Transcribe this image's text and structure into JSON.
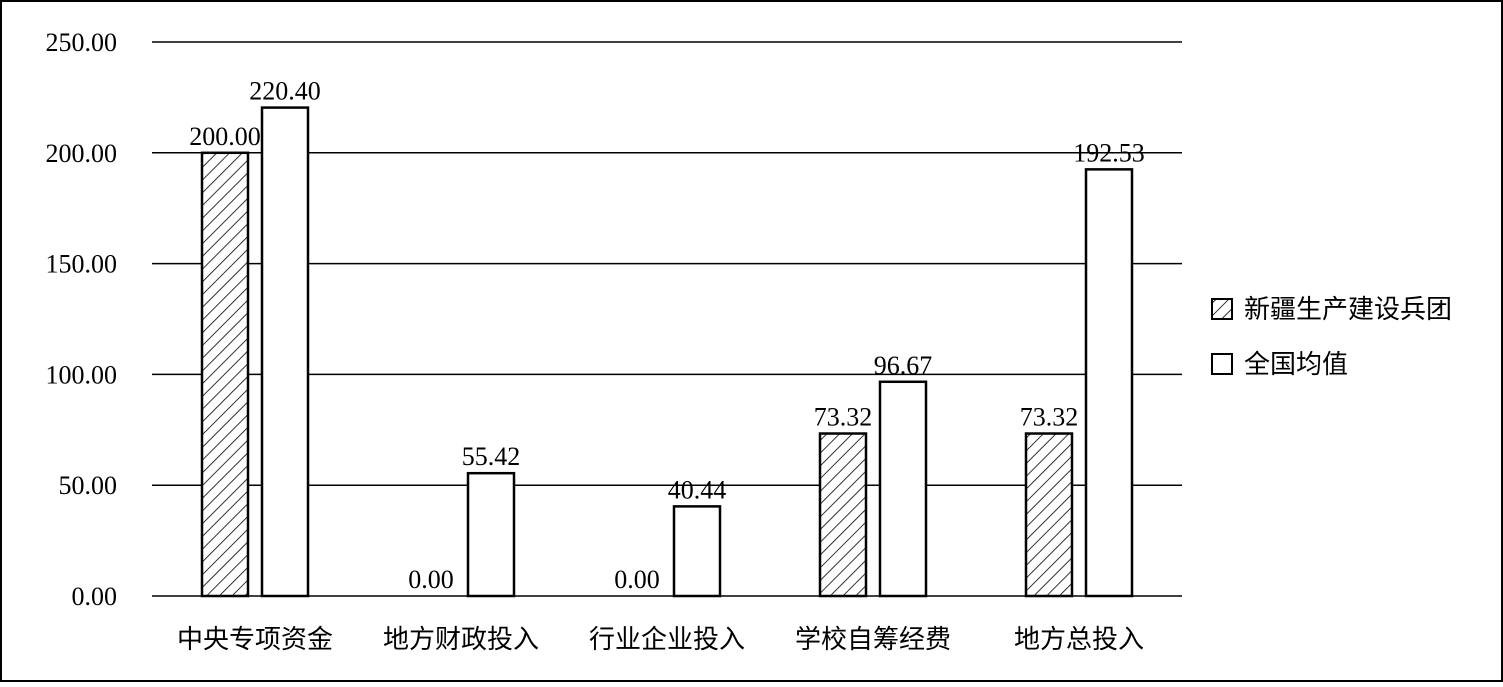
{
  "chart_data": {
    "type": "bar",
    "categories": [
      "中央专项资金",
      "地方财政投入",
      "行业企业投入",
      "学校自筹经费",
      "地方总投入"
    ],
    "series": [
      {
        "name": "新疆生产建设兵团",
        "values": [
          200.0,
          0.0,
          0.0,
          73.32,
          73.32
        ],
        "pattern": "hatched"
      },
      {
        "name": "全国均值",
        "values": [
          220.4,
          55.42,
          40.44,
          96.67,
          192.53
        ],
        "pattern": "none"
      }
    ],
    "data_labels": [
      [
        "200.00",
        "0.00",
        "0.00",
        "73.32",
        "73.32"
      ],
      [
        "220.40",
        "55.42",
        "40.44",
        "96.67",
        "192.53"
      ]
    ],
    "yticks": [
      "0.00",
      "50.00",
      "100.00",
      "150.00",
      "200.00",
      "250.00"
    ],
    "ylim": [
      0,
      250
    ],
    "grid": true,
    "legend_position": "right",
    "colors": {
      "bar_fill": "#ffffff",
      "bar_stroke": "#000000",
      "grid": "#000000"
    }
  }
}
